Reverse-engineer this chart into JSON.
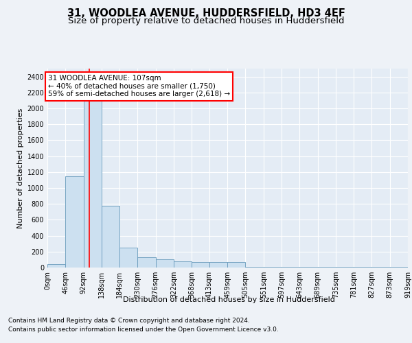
{
  "title": "31, WOODLEA AVENUE, HUDDERSFIELD, HD3 4EF",
  "subtitle": "Size of property relative to detached houses in Huddersfield",
  "xlabel": "Distribution of detached houses by size in Huddersfield",
  "ylabel": "Number of detached properties",
  "bin_edges": [
    0,
    46,
    92,
    138,
    184,
    230,
    276,
    322,
    368,
    413,
    459,
    505,
    551,
    597,
    643,
    689,
    735,
    781,
    827,
    873,
    919
  ],
  "bar_heights": [
    40,
    1150,
    2200,
    780,
    250,
    130,
    100,
    80,
    65,
    65,
    65,
    5,
    5,
    5,
    5,
    5,
    5,
    5,
    5,
    5
  ],
  "bar_color": "#cce0f0",
  "bar_edge_color": "#6699bb",
  "red_line_x": 107,
  "annotation_text": "31 WOODLEA AVENUE: 107sqm\n← 40% of detached houses are smaller (1,750)\n59% of semi-detached houses are larger (2,618) →",
  "annotation_box_color": "white",
  "annotation_box_edge_color": "red",
  "ylim": [
    0,
    2500
  ],
  "yticks": [
    0,
    200,
    400,
    600,
    800,
    1000,
    1200,
    1400,
    1600,
    1800,
    2000,
    2200,
    2400
  ],
  "footer_line1": "Contains HM Land Registry data © Crown copyright and database right 2024.",
  "footer_line2": "Contains public sector information licensed under the Open Government Licence v3.0.",
  "background_color": "#eef2f7",
  "plot_bg_color": "#e4ecf5",
  "grid_color": "white",
  "title_fontsize": 10.5,
  "subtitle_fontsize": 9.5,
  "axis_label_fontsize": 8,
  "tick_label_fontsize": 7,
  "annotation_fontsize": 7.5,
  "footer_fontsize": 6.5
}
